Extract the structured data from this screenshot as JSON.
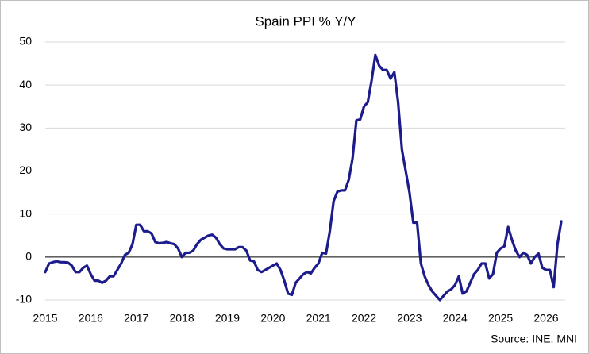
{
  "chart_data": {
    "type": "line",
    "title": "Spain PPI % Y/Y",
    "source": "Source: INE, MNI",
    "categories": [
      "2015",
      null,
      null,
      null,
      null,
      null,
      null,
      null,
      null,
      null,
      null,
      null,
      "2016",
      null,
      null,
      null,
      null,
      null,
      null,
      null,
      null,
      null,
      null,
      null,
      "2017",
      null,
      null,
      null,
      null,
      null,
      null,
      null,
      null,
      null,
      null,
      null,
      "2018",
      null,
      null,
      null,
      null,
      null,
      null,
      null,
      null,
      null,
      null,
      null,
      "2019",
      null,
      null,
      null,
      null,
      null,
      null,
      null,
      null,
      null,
      null,
      null,
      "2020",
      null,
      null,
      null,
      null,
      null,
      null,
      null,
      null,
      null,
      null,
      null,
      "2021",
      null,
      null,
      null,
      null,
      null,
      null,
      null,
      null,
      null,
      null,
      null,
      "2022",
      null,
      null,
      null,
      null,
      null,
      null,
      null,
      null,
      null,
      null,
      null,
      "2023",
      null,
      null,
      null,
      null,
      null,
      null,
      null,
      null,
      null,
      null,
      null,
      "2024",
      null,
      null,
      null,
      null,
      null,
      null,
      null,
      null,
      null,
      null,
      null,
      "2025",
      null,
      null,
      null,
      null,
      null,
      null,
      null,
      null,
      null,
      null,
      null,
      "2026",
      null,
      null,
      null,
      null
    ],
    "series": [
      {
        "name": "Spain PPI % Y/Y",
        "color": "#1c1c8c",
        "values": [
          -3.5,
          -1.5,
          -1.2,
          -1,
          -1.2,
          -1.2,
          -1.3,
          -2,
          -3.5,
          -3.5,
          -2.5,
          -2,
          -4,
          -5.5,
          -5.5,
          -6,
          -5.5,
          -4.5,
          -4.5,
          -3,
          -1.5,
          0.5,
          1,
          3,
          7.5,
          7.5,
          6,
          6,
          5.5,
          3.5,
          3.2,
          3.3,
          3.5,
          3.2,
          3,
          2,
          0,
          1,
          1,
          1.5,
          3,
          4,
          4.5,
          5,
          5.2,
          4.5,
          3,
          2,
          1.8,
          1.8,
          1.8,
          2.3,
          2.3,
          1.5,
          -0.8,
          -1,
          -3,
          -3.5,
          -3,
          -2.5,
          -2,
          -1.5,
          -3,
          -5.5,
          -8.5,
          -8.8,
          -6,
          -5,
          -4,
          -3.5,
          -3.8,
          -2.5,
          -1.5,
          1,
          0.8,
          6,
          13,
          15.2,
          15.5,
          15.5,
          18,
          23,
          31.8,
          32,
          35,
          36,
          41,
          47,
          44.5,
          43.5,
          43.5,
          41.5,
          43,
          36,
          25,
          20,
          15,
          8,
          8,
          -1.5,
          -4.5,
          -6.5,
          -8,
          -9,
          -10,
          -9,
          -8,
          -7.5,
          -6.5,
          -4.5,
          -8.5,
          -8,
          -6,
          -4,
          -3,
          -1.5,
          -1.5,
          -5,
          -4,
          1,
          2,
          2.5,
          7,
          4,
          1.5,
          0,
          1,
          0.5,
          -1.5,
          0,
          0.8,
          -2.5,
          -3,
          -3,
          -7,
          3,
          8.3
        ]
      }
    ],
    "ylim": [
      -10,
      50
    ],
    "yticks": [
      -10,
      0,
      10,
      20,
      30,
      40,
      50
    ],
    "grid": true
  }
}
